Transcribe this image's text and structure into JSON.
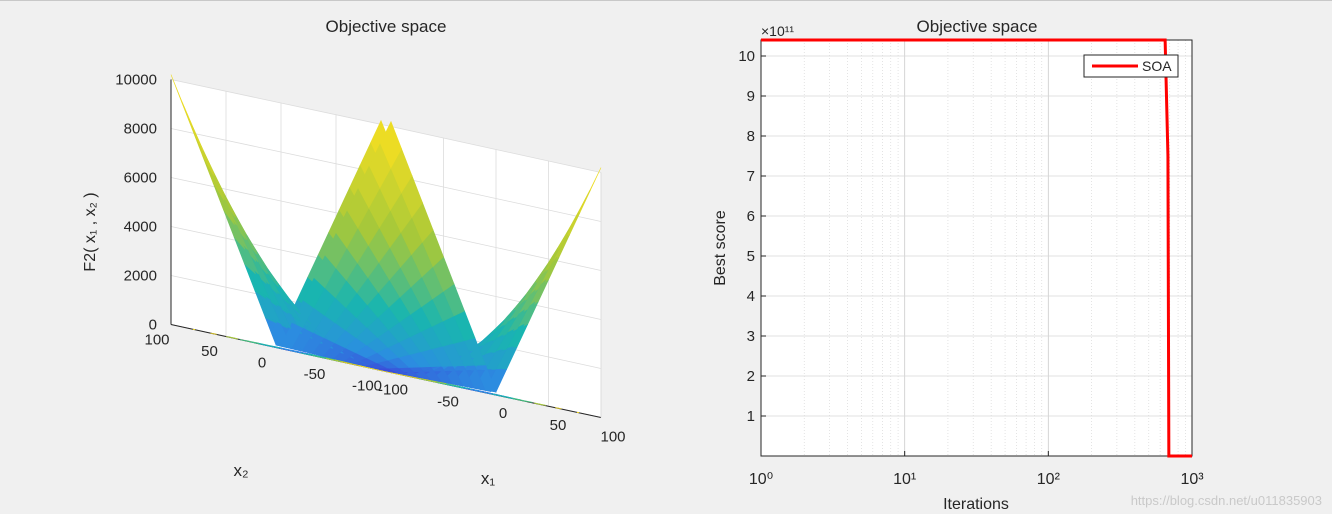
{
  "figure": {
    "watermark": "https://blog.csdn.net/u011835903"
  },
  "chart_data": [
    {
      "type": "surface",
      "title": "Objective space",
      "zlabel": "F2( x₁ , x₂ )",
      "xlabel": "x₁",
      "ylabel": "x₂",
      "x_ticks": [
        "-100",
        "-50",
        "0",
        "50",
        "100"
      ],
      "y_ticks": [
        "-100",
        "-50",
        "0",
        "50",
        "100"
      ],
      "z_ticks": [
        "0",
        "2000",
        "4000",
        "6000",
        "8000",
        "10000"
      ],
      "xlim": [
        -100,
        100
      ],
      "ylim": [
        -100,
        100
      ],
      "zlim": [
        0,
        10000
      ],
      "function": "|x1|+|x2|+|x1|*|x2|",
      "grid": true,
      "colormap": "parula",
      "contour_projection": true
    },
    {
      "type": "line",
      "title": "Objective space",
      "xlabel": "Iterations",
      "ylabel": "Best score",
      "x_scale": "log",
      "xlim": [
        1,
        1000
      ],
      "ylim": [
        0,
        1040000000000.0
      ],
      "y_exponent": "×10¹¹",
      "y_ticks": [
        "1",
        "2",
        "3",
        "4",
        "5",
        "6",
        "7",
        "8",
        "9",
        "10"
      ],
      "x_ticks": [
        "10⁰",
        "10¹",
        "10²",
        "10³"
      ],
      "grid": true,
      "legend_position": "top-right",
      "series": [
        {
          "name": "SOA",
          "color": "#ff0000",
          "x": [
            1,
            100,
            500,
            650,
            680,
            690,
            700,
            1000
          ],
          "y": [
            1040000000000.0,
            1040000000000.0,
            1040000000000.0,
            1040000000000.0,
            750000000000.0,
            0,
            0,
            0
          ]
        }
      ]
    }
  ]
}
